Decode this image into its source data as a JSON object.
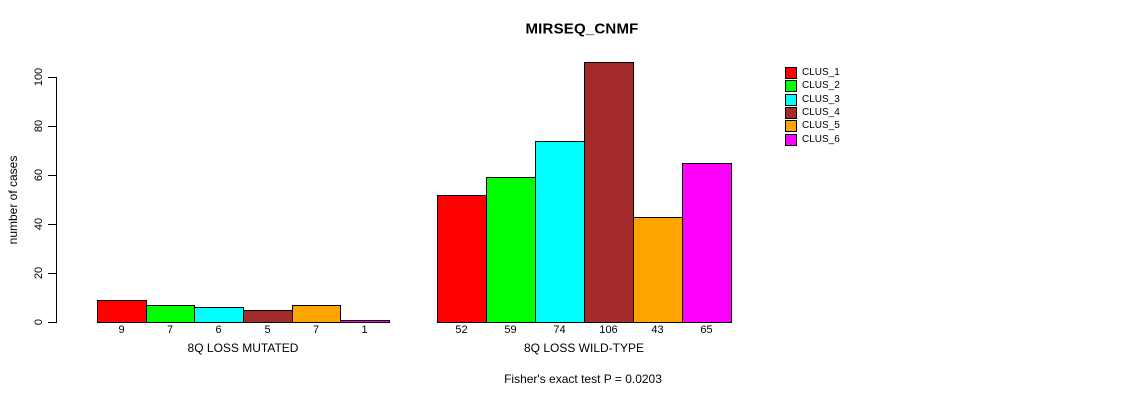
{
  "chart_data": {
    "type": "bar",
    "title": "MIRSEQ_CNMF",
    "ylabel": "number of cases",
    "xlabel": "",
    "annotation": "Fisher's exact test P = 0.0203",
    "yticks": [
      0,
      20,
      40,
      60,
      80,
      100
    ],
    "ylim": [
      0,
      106
    ],
    "grid": false,
    "legend_position": "right",
    "categories": [
      "CLUS_1",
      "CLUS_2",
      "CLUS_3",
      "CLUS_4",
      "CLUS_5",
      "CLUS_6"
    ],
    "colors": [
      "#FF0000",
      "#00FF00",
      "#00FFFF",
      "#A52A2A",
      "#FFA500",
      "#FF00FF"
    ],
    "groups": [
      {
        "label": "8Q LOSS MUTATED",
        "values": [
          9,
          7,
          6,
          5,
          7,
          1
        ]
      },
      {
        "label": "8Q LOSS WILD-TYPE",
        "values": [
          52,
          59,
          74,
          106,
          43,
          65
        ]
      }
    ]
  }
}
